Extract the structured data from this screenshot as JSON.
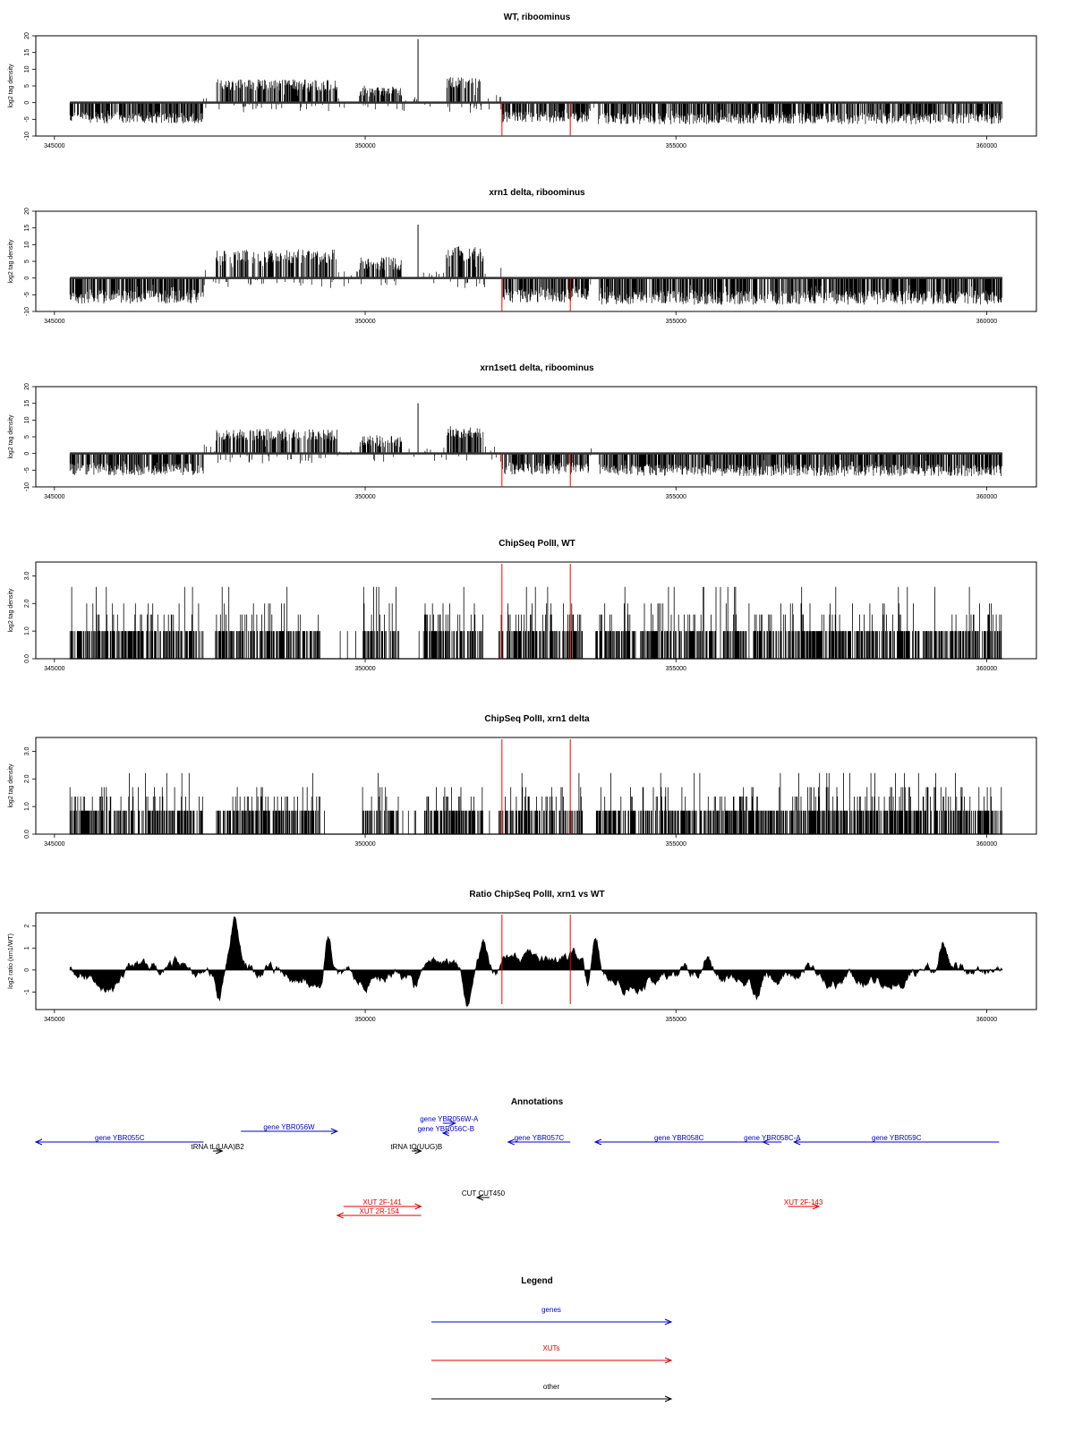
{
  "panels": [
    {
      "title": "WT, riboominus",
      "type": "signal",
      "ylabel": "log2 tag density",
      "ylim": [
        -10,
        20
      ],
      "yticks": [
        -10,
        -5,
        0,
        5,
        10,
        15,
        20
      ],
      "seed": 11,
      "amp": 0.85,
      "spike": 19
    },
    {
      "title": "xrn1 delta, riboominus",
      "type": "signal",
      "ylabel": "log2 tag density",
      "ylim": [
        -10,
        20
      ],
      "yticks": [
        -10,
        -5,
        0,
        5,
        10,
        15,
        20
      ],
      "seed": 23,
      "amp": 1.05,
      "spike": 16
    },
    {
      "title": "xrn1set1 delta, riboominus",
      "type": "signal",
      "ylabel": "log2 tag density",
      "ylim": [
        -10,
        20
      ],
      "yticks": [
        -10,
        -5,
        0,
        5,
        10,
        15,
        20
      ],
      "seed": 37,
      "amp": 0.9,
      "spike": 15
    },
    {
      "title": "ChipSeq PolII, WT",
      "type": "chip",
      "ylabel": "log2 tag density",
      "ylim": [
        0,
        3.5
      ],
      "yticks": [
        "0.0",
        "1.0",
        "2.0",
        "3.0"
      ],
      "seed": 41,
      "amp": 1.0,
      "spike": 3.4
    },
    {
      "title": "ChipSeq PolII, xrn1 delta",
      "type": "chip",
      "ylabel": "log2 tag density",
      "ylim": [
        0,
        3.5
      ],
      "yticks": [
        "0.0",
        "1.0",
        "2.0",
        "3.0"
      ],
      "seed": 53,
      "amp": 0.85,
      "spike": 2.5
    },
    {
      "title": "Ratio ChipSeq PolII, xrn1 vs WT",
      "type": "ratio",
      "ylabel": "log2 ratio (xrn1/WT)",
      "ylim": [
        -1.8,
        2.6
      ],
      "yticks": [
        -1,
        0,
        1,
        2
      ],
      "seed": 67,
      "amp": 1.0,
      "spike": 2.5
    }
  ],
  "xaxis": {
    "range": [
      344700,
      360800
    ],
    "ticks": [
      "345000",
      "350000",
      "355000",
      "360000"
    ],
    "data_start": 345250,
    "data_end": 360250
  },
  "red_lines": [
    352200,
    353300
  ],
  "annotations": {
    "title": "Annotations",
    "items": [
      {
        "label": "gene YBR055C",
        "start": 347400,
        "end": 344700,
        "row": 0,
        "color": "#0000cc"
      },
      {
        "label": "tRNA tL(UAA)B2",
        "start": 347550,
        "end": 347700,
        "row": 1,
        "color": "#000000"
      },
      {
        "label": "gene YBR056W",
        "start": 348000,
        "end": 349550,
        "row": -1,
        "color": "#0000cc"
      },
      {
        "label": "gene YBR056W-A",
        "start": 351250,
        "end": 351450,
        "row": -1.6,
        "color": "#0000cc"
      },
      {
        "label": "gene YBR056C-B",
        "start": 351350,
        "end": 351250,
        "row": -0.6,
        "color": "#0000cc"
      },
      {
        "label": "tRNA tQ(UUG)B",
        "start": 350750,
        "end": 350900,
        "row": 1,
        "color": "#000000"
      },
      {
        "label": "gene YBR057C",
        "start": 353300,
        "end": 352300,
        "row": 0,
        "color": "#0000cc"
      },
      {
        "label": "gene YBR058C",
        "start": 356400,
        "end": 353700,
        "row": 0,
        "color": "#0000cc"
      },
      {
        "label": "gene YBR058C-A",
        "start": 356700,
        "end": 356400,
        "row": 0,
        "color": "#0000cc"
      },
      {
        "label": "gene YBR059C",
        "start": 360200,
        "end": 356900,
        "row": 0,
        "color": "#0000cc"
      },
      {
        "label": "CUT CUT450",
        "start": 352000,
        "end": 351800,
        "row": 4,
        "color": "#000000"
      },
      {
        "label": "XUT 2F-141",
        "start": 349650,
        "end": 350900,
        "row": 5,
        "color": "#dd0000"
      },
      {
        "label": "XUT 2R-154",
        "start": 350900,
        "end": 349550,
        "row": 6,
        "color": "#dd0000"
      },
      {
        "label": "XUT 2F-143",
        "start": 356800,
        "end": 357300,
        "row": 5,
        "color": "#dd0000"
      }
    ]
  },
  "legend": {
    "title": "Legend",
    "items": [
      {
        "label": "genes",
        "color": "#0000cc"
      },
      {
        "label": "XUTs",
        "color": "#dd0000"
      },
      {
        "label": "other",
        "color": "#000000"
      }
    ]
  }
}
